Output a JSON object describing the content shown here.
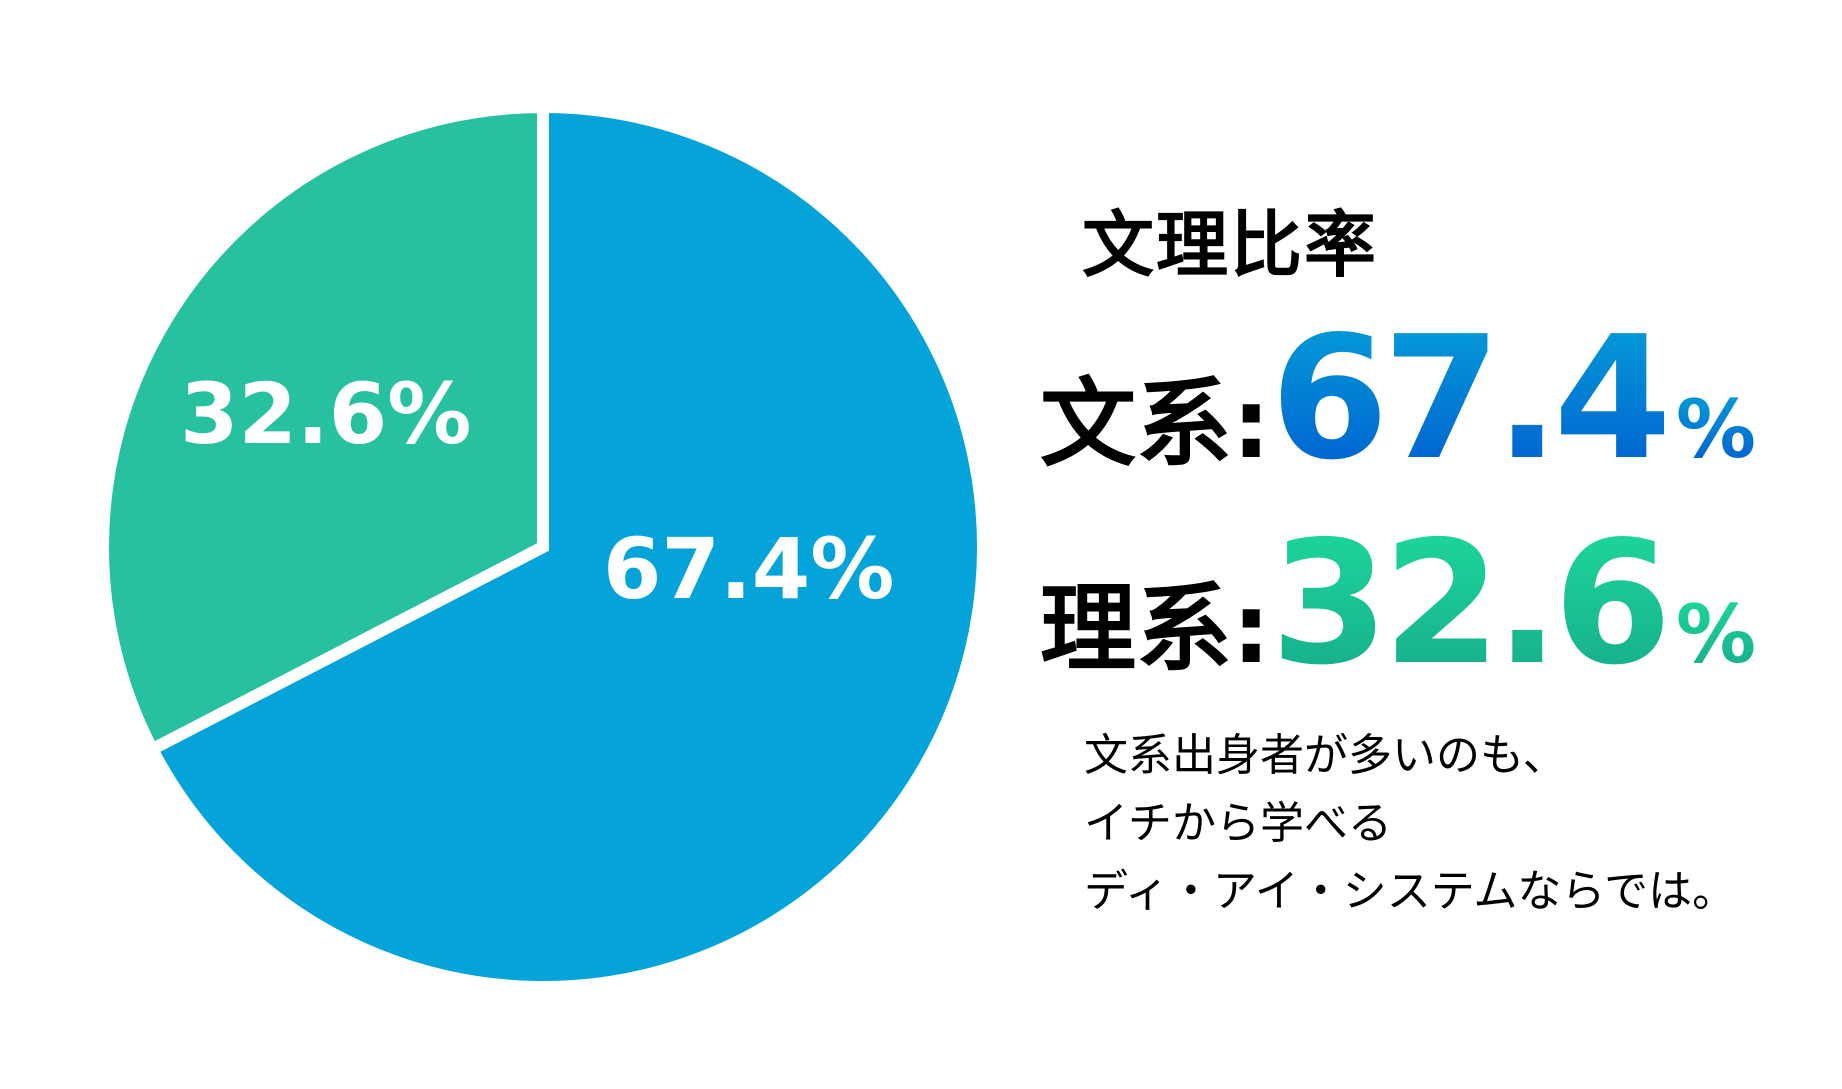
{
  "chart_data": {
    "type": "pie",
    "title": "文理比率",
    "categories": [
      "文系",
      "理系"
    ],
    "values": [
      67.4,
      32.6
    ],
    "unit": "%",
    "colors": [
      "#04a3da",
      "#28c1a0"
    ],
    "slice_labels": [
      "67.4%",
      "32.6%"
    ],
    "start_angle": "12 o'clock, clockwise for 文系",
    "legend": "none (values shown at right)"
  },
  "title": "文理比率",
  "stats": [
    {
      "label": "文系:",
      "value": "67.4",
      "unit": "%"
    },
    {
      "label": "理系:",
      "value": "32.6",
      "unit": "%"
    }
  ],
  "slice_labels": {
    "bunkei": "67.4%",
    "rikei": "32.6%"
  },
  "note": {
    "lines": [
      "文系出身者が多いのも、",
      "イチから学べる",
      "ディ・アイ・システムならでは。"
    ]
  }
}
